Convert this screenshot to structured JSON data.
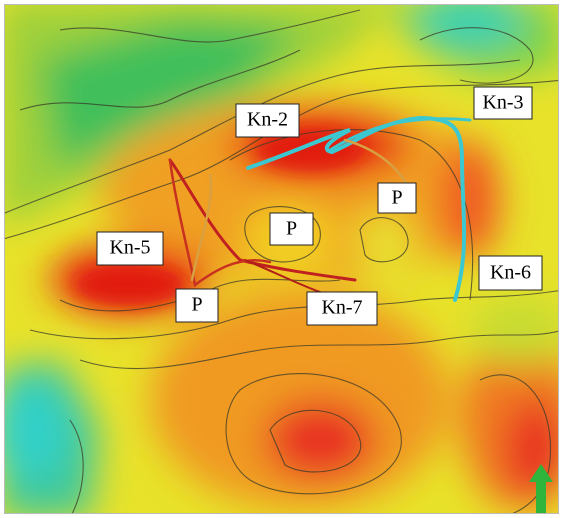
{
  "labels": [
    "Kn-2",
    "Kn-3",
    "P",
    "P",
    "Kn-5",
    "Kn-6",
    "P",
    "Kn-7"
  ]
}
